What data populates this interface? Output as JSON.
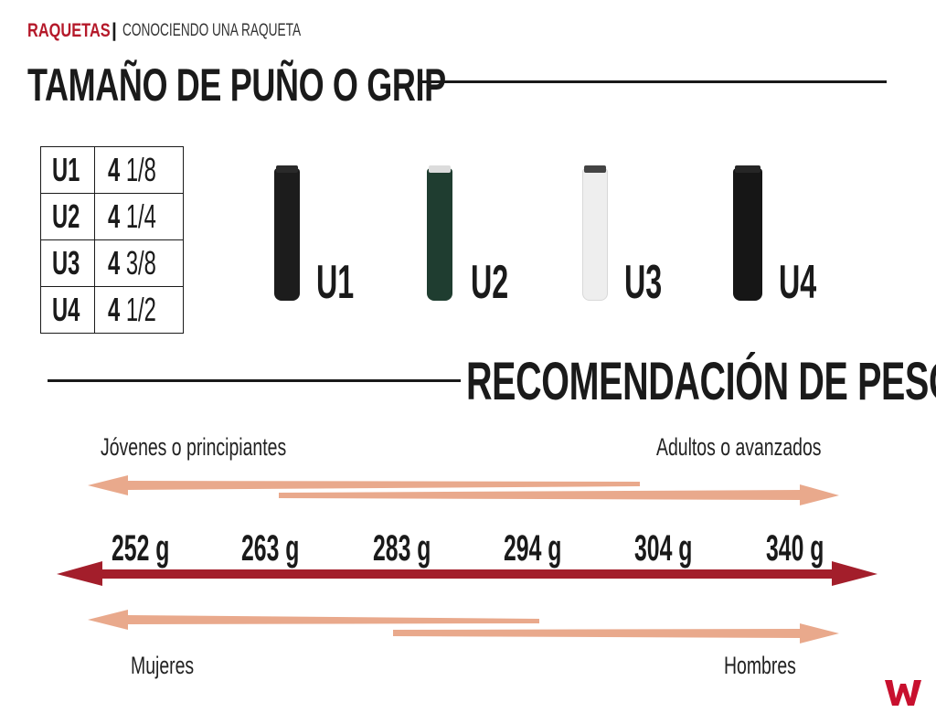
{
  "header": {
    "section": "RAQUETAS",
    "separator": "|",
    "subsection": "CONOCIENDO UNA RAQUETA"
  },
  "title": "TAMAÑO DE PUÑO O GRIP",
  "grip_table": [
    {
      "size": "U1",
      "whole": "4",
      "fraction": "1/8"
    },
    {
      "size": "U2",
      "whole": "4",
      "fraction": "1/4"
    },
    {
      "size": "U3",
      "whole": "4",
      "fraction": "3/8"
    },
    {
      "size": "U4",
      "whole": "4",
      "fraction": "1/2"
    }
  ],
  "grips": [
    {
      "label": "U1",
      "color": "#1c1c1c",
      "cap": "#2a2a2a"
    },
    {
      "label": "U2",
      "color": "#1f3d30",
      "cap": "#dcdcdc"
    },
    {
      "label": "U3",
      "color": "#eeeeee",
      "cap": "#444444"
    },
    {
      "label": "U4",
      "color": "#161616",
      "cap": "#262626"
    }
  ],
  "section_title": "RECOMENDACIÓN DE PESOS",
  "annotations": {
    "beginners": "Jóvenes o principiantes",
    "advanced": "Adultos o avanzados",
    "women": "Mujeres",
    "men": "Hombres"
  },
  "weights": [
    "252 g",
    "263 g",
    "283 g",
    "294 g",
    "304 g",
    "340 g"
  ],
  "colors": {
    "brand_red": "#b5192a",
    "arrow_red": "#a31e2b",
    "arrow_peach": "#e9a98c",
    "text": "#1a1a1a"
  }
}
